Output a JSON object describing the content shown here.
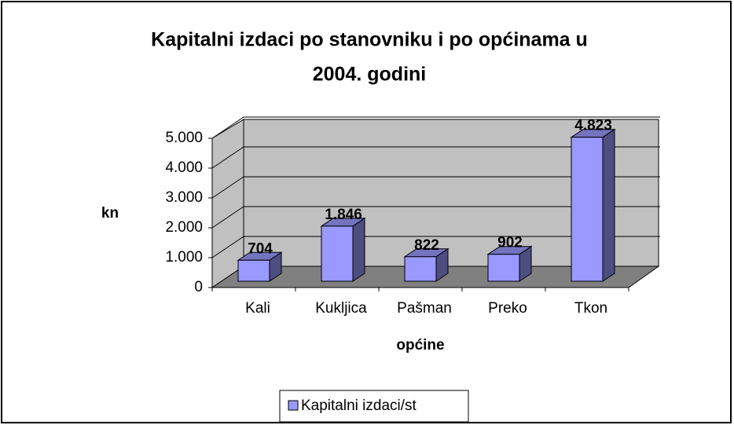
{
  "chart_data": {
    "type": "bar3d",
    "title": [
      "Kapitalni izdaci po stanovniku i po općinama u",
      "2004. godini"
    ],
    "x_label": "općine",
    "y_label": "kn",
    "categories": [
      "Kali",
      "Kukljica",
      "Pašman",
      "Preko",
      "Tkon"
    ],
    "series": [
      {
        "name": "Kapitalni izdaci/st",
        "color": "#9999ff",
        "values": [
          704,
          1846,
          822,
          902,
          4823
        ],
        "value_labels": [
          "704",
          "1.846",
          "822",
          "902",
          "4.823"
        ]
      }
    ],
    "ylim": [
      0,
      5000
    ],
    "yticks": [
      {
        "value": 0,
        "label": "0"
      },
      {
        "value": 1000,
        "label": "1.000"
      },
      {
        "value": 2000,
        "label": "2.000"
      },
      {
        "value": 3000,
        "label": "3.000"
      },
      {
        "value": 4000,
        "label": "4.000"
      },
      {
        "value": 5000,
        "label": "5.000"
      }
    ],
    "grid": true,
    "legend": "bottom"
  }
}
